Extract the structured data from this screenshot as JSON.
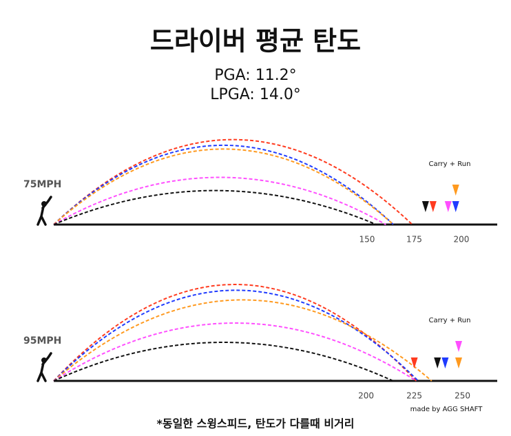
{
  "title": "드라이버 평균 탄도",
  "subtitle": [
    "PGA: 11.2°",
    "LPGA: 14.0°"
  ],
  "credit": "made by AGG SHAFT",
  "footnote": "*동일한 스윙스피드, 탄도가 다를때 비거리",
  "chart_data": [
    {
      "type": "trajectory",
      "label": "75MPH",
      "annotation": "Carry + Run",
      "xlim": [
        -16,
        219
      ],
      "xticks": [
        150,
        175,
        200
      ],
      "series": [
        {
          "color": "#ff3b1f",
          "carry": 174,
          "apex": 45,
          "total": 185
        },
        {
          "color": "#1f3bff",
          "carry": 164,
          "apex": 42,
          "total": 197
        },
        {
          "color": "#ff9a1f",
          "carry": 164,
          "apex": 40,
          "total": 197
        },
        {
          "color": "#ff4fff",
          "carry": 160,
          "apex": 25,
          "total": 193
        },
        {
          "color": "#111111",
          "carry": 155,
          "apex": 18,
          "total": 181
        }
      ]
    },
    {
      "type": "trajectory",
      "label": "95MPH",
      "annotation": "Carry + Run",
      "xlim": [
        38,
        268
      ],
      "xticks": [
        200,
        225,
        250
      ],
      "series": [
        {
          "color": "#ff3b1f",
          "carry": 226,
          "apex": 50,
          "total": 225
        },
        {
          "color": "#1f3bff",
          "carry": 227,
          "apex": 47,
          "total": 241
        },
        {
          "color": "#ff9a1f",
          "carry": 234,
          "apex": 42,
          "total": 248
        },
        {
          "color": "#ff4fff",
          "carry": 226,
          "apex": 30,
          "total": 248
        },
        {
          "color": "#111111",
          "carry": 214,
          "apex": 20,
          "total": 237
        }
      ]
    }
  ]
}
